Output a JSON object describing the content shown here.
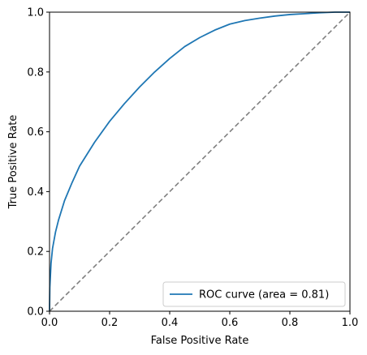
{
  "chart_data": {
    "type": "line",
    "title": "",
    "xlabel": "False Positive Rate",
    "ylabel": "True Positive Rate",
    "xlim": [
      0.0,
      1.0
    ],
    "ylim": [
      0.0,
      1.0
    ],
    "grid": false,
    "legend_position": "lower-right",
    "x_ticks": [
      {
        "value": 0.0,
        "label": "0.0"
      },
      {
        "value": 0.2,
        "label": "0.2"
      },
      {
        "value": 0.4,
        "label": "0.4"
      },
      {
        "value": 0.6,
        "label": "0.6"
      },
      {
        "value": 0.8,
        "label": "0.8"
      },
      {
        "value": 1.0,
        "label": "1.0"
      }
    ],
    "y_ticks": [
      {
        "value": 0.0,
        "label": "0.0"
      },
      {
        "value": 0.2,
        "label": "0.2"
      },
      {
        "value": 0.4,
        "label": "0.4"
      },
      {
        "value": 0.6,
        "label": "0.6"
      },
      {
        "value": 0.8,
        "label": "0.8"
      },
      {
        "value": 1.0,
        "label": "1.0"
      }
    ],
    "series": [
      {
        "name": "ROC curve (area = 0.81)",
        "color": "#1f77b4",
        "style": "solid",
        "x": [
          0.0,
          0.001,
          0.005,
          0.01,
          0.02,
          0.03,
          0.05,
          0.075,
          0.1,
          0.15,
          0.2,
          0.25,
          0.3,
          0.35,
          0.4,
          0.45,
          0.5,
          0.55,
          0.6,
          0.65,
          0.7,
          0.75,
          0.8,
          0.85,
          0.9,
          0.95,
          1.0
        ],
        "y": [
          0.0,
          0.08,
          0.16,
          0.21,
          0.265,
          0.305,
          0.37,
          0.43,
          0.485,
          0.565,
          0.635,
          0.695,
          0.75,
          0.8,
          0.845,
          0.885,
          0.915,
          0.94,
          0.96,
          0.972,
          0.98,
          0.987,
          0.992,
          0.995,
          0.998,
          1.0,
          1.0
        ]
      },
      {
        "color": "#808080",
        "style": "dashed",
        "x": [
          0.0,
          1.0
        ],
        "y": [
          0.0,
          1.0
        ]
      }
    ]
  }
}
